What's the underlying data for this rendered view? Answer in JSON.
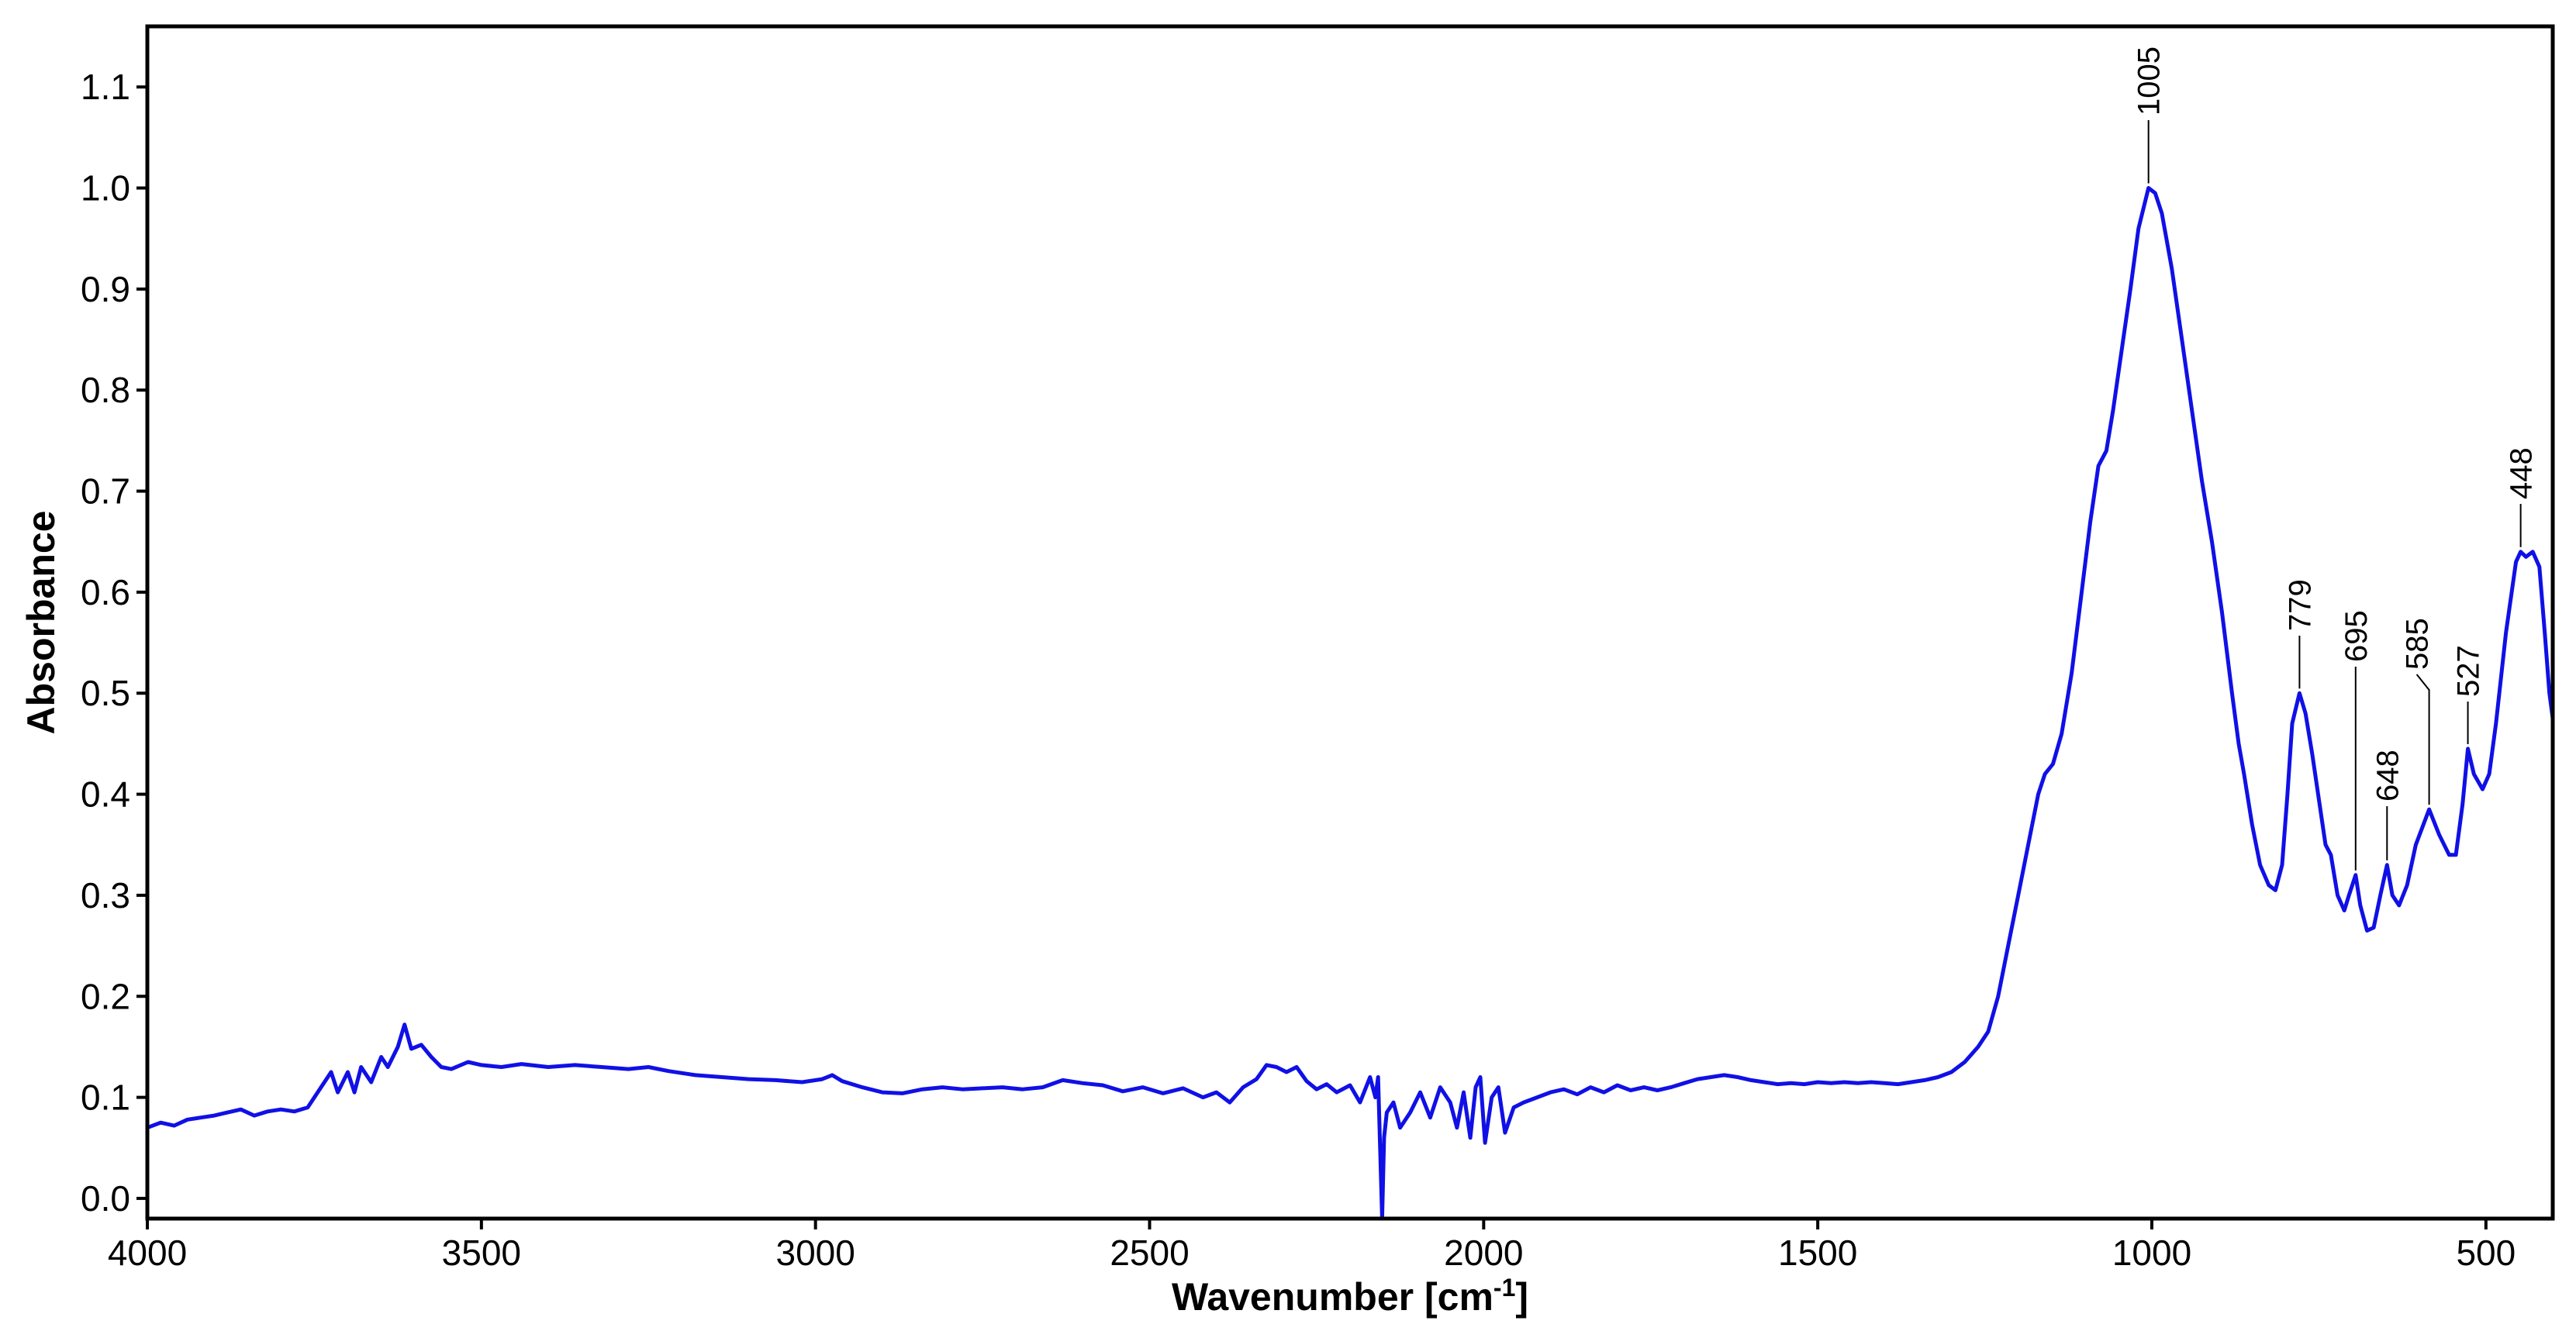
{
  "chart_data": {
    "type": "line",
    "title": "",
    "xlabel": "Wavenumber [cm",
    "xlabel_sup": "-1",
    "xlabel_close": "]",
    "ylabel": "Absorbance",
    "xlim": [
      4000,
      400
    ],
    "ylim": [
      -0.02,
      1.16
    ],
    "x_reversed": true,
    "grid": false,
    "line_color": "#1010e6",
    "xticks": [
      4000,
      3500,
      3000,
      2500,
      2000,
      1500,
      1000,
      500
    ],
    "yticks": [
      0.0,
      0.1,
      0.2,
      0.3,
      0.4,
      0.5,
      0.6,
      0.7,
      0.8,
      0.9,
      1.0,
      1.1
    ],
    "ytick_labels": [
      "0.0",
      "0.1",
      "0.2",
      "0.3",
      "0.4",
      "0.5",
      "0.6",
      "0.7",
      "0.8",
      "0.9",
      "1.0",
      "1.1"
    ],
    "series": [
      {
        "values": [
          [
            4000,
            0.07
          ],
          [
            3980,
            0.075
          ],
          [
            3960,
            0.072
          ],
          [
            3940,
            0.078
          ],
          [
            3920,
            0.08
          ],
          [
            3900,
            0.082
          ],
          [
            3880,
            0.085
          ],
          [
            3860,
            0.088
          ],
          [
            3840,
            0.082
          ],
          [
            3820,
            0.086
          ],
          [
            3800,
            0.088
          ],
          [
            3780,
            0.086
          ],
          [
            3760,
            0.09
          ],
          [
            3740,
            0.11
          ],
          [
            3725,
            0.125
          ],
          [
            3715,
            0.105
          ],
          [
            3700,
            0.125
          ],
          [
            3690,
            0.105
          ],
          [
            3680,
            0.13
          ],
          [
            3665,
            0.115
          ],
          [
            3650,
            0.14
          ],
          [
            3640,
            0.13
          ],
          [
            3625,
            0.15
          ],
          [
            3615,
            0.172
          ],
          [
            3605,
            0.148
          ],
          [
            3590,
            0.152
          ],
          [
            3575,
            0.14
          ],
          [
            3560,
            0.13
          ],
          [
            3545,
            0.128
          ],
          [
            3520,
            0.135
          ],
          [
            3500,
            0.132
          ],
          [
            3470,
            0.13
          ],
          [
            3440,
            0.133
          ],
          [
            3400,
            0.13
          ],
          [
            3360,
            0.132
          ],
          [
            3320,
            0.13
          ],
          [
            3280,
            0.128
          ],
          [
            3250,
            0.13
          ],
          [
            3220,
            0.126
          ],
          [
            3180,
            0.122
          ],
          [
            3140,
            0.12
          ],
          [
            3100,
            0.118
          ],
          [
            3060,
            0.117
          ],
          [
            3020,
            0.115
          ],
          [
            2990,
            0.118
          ],
          [
            2975,
            0.122
          ],
          [
            2960,
            0.116
          ],
          [
            2930,
            0.11
          ],
          [
            2900,
            0.105
          ],
          [
            2870,
            0.104
          ],
          [
            2840,
            0.108
          ],
          [
            2810,
            0.11
          ],
          [
            2780,
            0.108
          ],
          [
            2750,
            0.109
          ],
          [
            2720,
            0.11
          ],
          [
            2690,
            0.108
          ],
          [
            2660,
            0.11
          ],
          [
            2630,
            0.117
          ],
          [
            2600,
            0.114
          ],
          [
            2570,
            0.112
          ],
          [
            2540,
            0.106
          ],
          [
            2510,
            0.11
          ],
          [
            2480,
            0.104
          ],
          [
            2450,
            0.109
          ],
          [
            2420,
            0.1
          ],
          [
            2400,
            0.105
          ],
          [
            2380,
            0.095
          ],
          [
            2360,
            0.11
          ],
          [
            2340,
            0.118
          ],
          [
            2325,
            0.132
          ],
          [
            2310,
            0.13
          ],
          [
            2295,
            0.125
          ],
          [
            2280,
            0.13
          ],
          [
            2265,
            0.116
          ],
          [
            2250,
            0.108
          ],
          [
            2235,
            0.113
          ],
          [
            2220,
            0.105
          ],
          [
            2200,
            0.112
          ],
          [
            2185,
            0.095
          ],
          [
            2170,
            0.12
          ],
          [
            2162,
            0.1
          ],
          [
            2158,
            0.12
          ],
          [
            2155,
            0.05
          ],
          [
            2152,
            -0.02
          ],
          [
            2149,
            0.06
          ],
          [
            2145,
            0.085
          ],
          [
            2135,
            0.095
          ],
          [
            2125,
            0.07
          ],
          [
            2110,
            0.085
          ],
          [
            2095,
            0.105
          ],
          [
            2080,
            0.08
          ],
          [
            2065,
            0.11
          ],
          [
            2050,
            0.095
          ],
          [
            2040,
            0.07
          ],
          [
            2030,
            0.105
          ],
          [
            2020,
            0.06
          ],
          [
            2012,
            0.11
          ],
          [
            2005,
            0.12
          ],
          [
            1998,
            0.055
          ],
          [
            1988,
            0.1
          ],
          [
            1978,
            0.11
          ],
          [
            1968,
            0.065
          ],
          [
            1955,
            0.09
          ],
          [
            1940,
            0.095
          ],
          [
            1920,
            0.1
          ],
          [
            1900,
            0.105
          ],
          [
            1880,
            0.108
          ],
          [
            1860,
            0.103
          ],
          [
            1840,
            0.11
          ],
          [
            1820,
            0.105
          ],
          [
            1800,
            0.112
          ],
          [
            1780,
            0.107
          ],
          [
            1760,
            0.11
          ],
          [
            1740,
            0.107
          ],
          [
            1720,
            0.11
          ],
          [
            1700,
            0.114
          ],
          [
            1680,
            0.118
          ],
          [
            1660,
            0.12
          ],
          [
            1640,
            0.122
          ],
          [
            1620,
            0.12
          ],
          [
            1600,
            0.117
          ],
          [
            1580,
            0.115
          ],
          [
            1560,
            0.113
          ],
          [
            1540,
            0.114
          ],
          [
            1520,
            0.113
          ],
          [
            1500,
            0.115
          ],
          [
            1480,
            0.114
          ],
          [
            1460,
            0.115
          ],
          [
            1440,
            0.114
          ],
          [
            1420,
            0.115
          ],
          [
            1400,
            0.114
          ],
          [
            1380,
            0.113
          ],
          [
            1360,
            0.115
          ],
          [
            1340,
            0.117
          ],
          [
            1320,
            0.12
          ],
          [
            1300,
            0.125
          ],
          [
            1280,
            0.135
          ],
          [
            1260,
            0.15
          ],
          [
            1245,
            0.165
          ],
          [
            1230,
            0.2
          ],
          [
            1215,
            0.25
          ],
          [
            1200,
            0.3
          ],
          [
            1185,
            0.35
          ],
          [
            1170,
            0.4
          ],
          [
            1160,
            0.42
          ],
          [
            1148,
            0.43
          ],
          [
            1135,
            0.46
          ],
          [
            1120,
            0.52
          ],
          [
            1105,
            0.6
          ],
          [
            1092,
            0.67
          ],
          [
            1080,
            0.725
          ],
          [
            1068,
            0.74
          ],
          [
            1058,
            0.78
          ],
          [
            1045,
            0.84
          ],
          [
            1032,
            0.9
          ],
          [
            1020,
            0.96
          ],
          [
            1005,
            1.0
          ],
          [
            995,
            0.995
          ],
          [
            985,
            0.975
          ],
          [
            970,
            0.92
          ],
          [
            955,
            0.85
          ],
          [
            940,
            0.78
          ],
          [
            925,
            0.71
          ],
          [
            910,
            0.65
          ],
          [
            895,
            0.58
          ],
          [
            880,
            0.5
          ],
          [
            870,
            0.45
          ],
          [
            862,
            0.42
          ],
          [
            850,
            0.37
          ],
          [
            838,
            0.33
          ],
          [
            825,
            0.31
          ],
          [
            815,
            0.305
          ],
          [
            805,
            0.33
          ],
          [
            797,
            0.4
          ],
          [
            790,
            0.47
          ],
          [
            779,
            0.5
          ],
          [
            770,
            0.48
          ],
          [
            760,
            0.44
          ],
          [
            750,
            0.395
          ],
          [
            740,
            0.35
          ],
          [
            732,
            0.34
          ],
          [
            722,
            0.3
          ],
          [
            712,
            0.285
          ],
          [
            705,
            0.3
          ],
          [
            695,
            0.32
          ],
          [
            688,
            0.29
          ],
          [
            678,
            0.265
          ],
          [
            668,
            0.268
          ],
          [
            658,
            0.3
          ],
          [
            648,
            0.33
          ],
          [
            640,
            0.3
          ],
          [
            630,
            0.29
          ],
          [
            618,
            0.31
          ],
          [
            605,
            0.35
          ],
          [
            585,
            0.385
          ],
          [
            570,
            0.36
          ],
          [
            555,
            0.34
          ],
          [
            545,
            0.34
          ],
          [
            535,
            0.39
          ],
          [
            527,
            0.445
          ],
          [
            518,
            0.42
          ],
          [
            505,
            0.405
          ],
          [
            495,
            0.42
          ],
          [
            485,
            0.47
          ],
          [
            470,
            0.56
          ],
          [
            455,
            0.63
          ],
          [
            448,
            0.64
          ],
          [
            440,
            0.635
          ],
          [
            430,
            0.64
          ],
          [
            420,
            0.625
          ],
          [
            412,
            0.56
          ],
          [
            405,
            0.5
          ],
          [
            400,
            0.475
          ]
        ]
      }
    ],
    "annotations": [
      {
        "text": "1005",
        "x": 1005,
        "y": 1.0
      },
      {
        "text": "779",
        "x": 779,
        "y": 0.5
      },
      {
        "text": "695",
        "x": 695,
        "y": 0.32
      },
      {
        "text": "648",
        "x": 648,
        "y": 0.33
      },
      {
        "text": "585",
        "x": 585,
        "y": 0.385
      },
      {
        "text": "527",
        "x": 527,
        "y": 0.445
      },
      {
        "text": "448",
        "x": 448,
        "y": 0.64
      }
    ]
  }
}
